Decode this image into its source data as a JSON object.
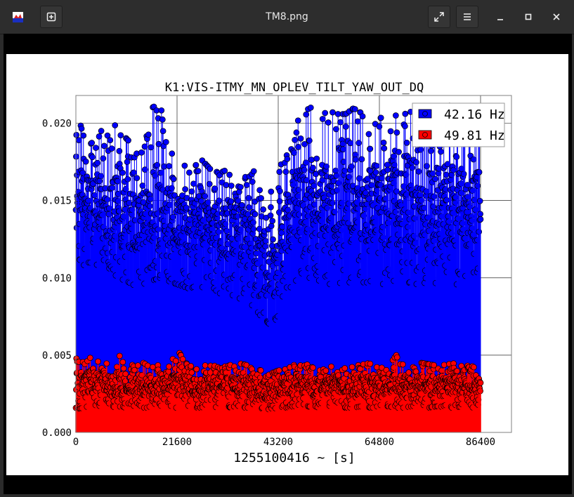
{
  "window": {
    "title": "TM8.png",
    "icons": [
      "app-icon",
      "new-tab-icon",
      "fullscreen-icon",
      "menu-icon",
      "minimize-icon",
      "maximize-icon",
      "close-icon"
    ]
  },
  "chart_data": {
    "type": "scatter",
    "title": "K1:VIS-ITMY_MN_OPLEV_TILT_YAW_OUT_DQ",
    "xlabel": "1255100416 ~ [s]",
    "ylabel": "",
    "xlim": [
      0,
      93000
    ],
    "ylim": [
      0,
      0.0218
    ],
    "xticks": [
      0,
      21600,
      43200,
      64800,
      86400
    ],
    "xtick_labels": [
      "0",
      "21600",
      "43200",
      "64800",
      "86400"
    ],
    "yticks": [
      0.0,
      0.005,
      0.01,
      0.015,
      0.02
    ],
    "ytick_labels": [
      "0.000",
      "0.005",
      "0.010",
      "0.015",
      "0.020"
    ],
    "grid": true,
    "legend_position": "top-right",
    "marker": "circle-with-stem",
    "series": [
      {
        "name": "42.16 Hz",
        "color": "#0000ff",
        "x": [
          0,
          1800,
          3600,
          5400,
          7200,
          9000,
          10800,
          12600,
          14400,
          16200,
          18000,
          19800,
          21600,
          23400,
          25200,
          27000,
          28800,
          30600,
          32400,
          34200,
          36000,
          37800,
          39600,
          41400,
          43200,
          45000,
          46800,
          48600,
          50400,
          52200,
          54000,
          55800,
          57600,
          59400,
          61200,
          63000,
          64800,
          66600,
          68400,
          70200,
          72000,
          73800,
          75600,
          77400,
          79200,
          81000,
          82800,
          84600,
          86400
        ],
        "y": [
          0.0155,
          0.015,
          0.0148,
          0.015,
          0.0146,
          0.0142,
          0.014,
          0.0136,
          0.0138,
          0.0145,
          0.0146,
          0.014,
          0.0138,
          0.0135,
          0.0134,
          0.0136,
          0.0132,
          0.0128,
          0.013,
          0.0132,
          0.0131,
          0.0128,
          0.011,
          0.01,
          0.0105,
          0.013,
          0.0148,
          0.015,
          0.0152,
          0.015,
          0.0148,
          0.0146,
          0.015,
          0.0148,
          0.0146,
          0.015,
          0.0148,
          0.0146,
          0.0145,
          0.0148,
          0.0146,
          0.0145,
          0.0148,
          0.0146,
          0.015,
          0.0148,
          0.0146,
          0.0145,
          0.015
        ],
        "min_envelope": [
          0.0115,
          0.0108,
          0.0107,
          0.011,
          0.0106,
          0.01,
          0.0098,
          0.0095,
          0.0096,
          0.0098,
          0.01,
          0.0098,
          0.0096,
          0.0094,
          0.0092,
          0.0094,
          0.0092,
          0.009,
          0.009,
          0.0088,
          0.0085,
          0.0082,
          0.0075,
          0.007,
          0.0074,
          0.009,
          0.0098,
          0.01,
          0.01,
          0.0098,
          0.0096,
          0.0096,
          0.0098,
          0.0096,
          0.0096,
          0.0098,
          0.0096,
          0.0096,
          0.0095,
          0.0098,
          0.0096,
          0.0096,
          0.0098,
          0.0096,
          0.0098,
          0.0096,
          0.0095,
          0.0095,
          0.011
        ],
        "max_envelope": [
          0.021,
          0.019,
          0.0187,
          0.0195,
          0.02,
          0.0198,
          0.019,
          0.0185,
          0.018,
          0.021,
          0.0213,
          0.0182,
          0.0178,
          0.0175,
          0.0172,
          0.0176,
          0.017,
          0.0168,
          0.017,
          0.0172,
          0.0174,
          0.017,
          0.016,
          0.0155,
          0.0165,
          0.019,
          0.02,
          0.0207,
          0.0211,
          0.0205,
          0.0208,
          0.0206,
          0.0206,
          0.021,
          0.0206,
          0.0209,
          0.0203,
          0.0206,
          0.0205,
          0.0206,
          0.0208,
          0.0205,
          0.0203,
          0.0208,
          0.0212,
          0.021,
          0.0206,
          0.0205,
          0.0205
        ]
      },
      {
        "name": "49.81 Hz",
        "color": "#ff0000",
        "x": [
          0,
          1800,
          3600,
          5400,
          7200,
          9000,
          10800,
          12600,
          14400,
          16200,
          18000,
          19800,
          21600,
          23400,
          25200,
          27000,
          28800,
          30600,
          32400,
          34200,
          36000,
          37800,
          39600,
          41400,
          43200,
          45000,
          46800,
          48600,
          50400,
          52200,
          54000,
          55800,
          57600,
          59400,
          61200,
          63000,
          64800,
          66600,
          68400,
          70200,
          72000,
          73800,
          75600,
          77400,
          79200,
          81000,
          82800,
          84600,
          86400
        ],
        "y": [
          0.0032,
          0.003,
          0.0034,
          0.0031,
          0.003,
          0.003,
          0.0029,
          0.0031,
          0.003,
          0.003,
          0.0031,
          0.003,
          0.003,
          0.0031,
          0.003,
          0.0029,
          0.003,
          0.0031,
          0.0029,
          0.003,
          0.0029,
          0.003,
          0.0028,
          0.0027,
          0.0028,
          0.0029,
          0.003,
          0.0031,
          0.003,
          0.0029,
          0.003,
          0.0031,
          0.003,
          0.0029,
          0.0031,
          0.003,
          0.0029,
          0.003,
          0.0031,
          0.003,
          0.0029,
          0.0031,
          0.003,
          0.0029,
          0.003,
          0.0031,
          0.003,
          0.0031,
          0.003
        ],
        "min_envelope": [
          0.0015,
          0.0016,
          0.0018,
          0.0017,
          0.0016,
          0.0017,
          0.0016,
          0.0017,
          0.0016,
          0.0016,
          0.0017,
          0.0016,
          0.0016,
          0.0017,
          0.0016,
          0.0016,
          0.0017,
          0.0016,
          0.0016,
          0.0017,
          0.0016,
          0.0016,
          0.0015,
          0.0015,
          0.0016,
          0.0016,
          0.0017,
          0.0016,
          0.0017,
          0.0016,
          0.0016,
          0.0017,
          0.0016,
          0.0016,
          0.0017,
          0.0016,
          0.0016,
          0.0017,
          0.0016,
          0.0016,
          0.0017,
          0.0016,
          0.0016,
          0.0017,
          0.0016,
          0.0016,
          0.0017,
          0.0016,
          0.0018
        ],
        "max_envelope": [
          0.0048,
          0.0045,
          0.0053,
          0.0042,
          0.0046,
          0.0051,
          0.0043,
          0.0044,
          0.0045,
          0.0042,
          0.0044,
          0.0042,
          0.0054,
          0.0045,
          0.0042,
          0.0043,
          0.0044,
          0.0042,
          0.0043,
          0.0045,
          0.0044,
          0.0042,
          0.004,
          0.0038,
          0.004,
          0.0041,
          0.0044,
          0.0043,
          0.0045,
          0.0043,
          0.0042,
          0.0044,
          0.0045,
          0.0043,
          0.0044,
          0.0045,
          0.0043,
          0.0042,
          0.005,
          0.0044,
          0.0043,
          0.0045,
          0.0044,
          0.0043,
          0.0044,
          0.0045,
          0.0044,
          0.0044,
          0.0035
        ]
      }
    ]
  }
}
